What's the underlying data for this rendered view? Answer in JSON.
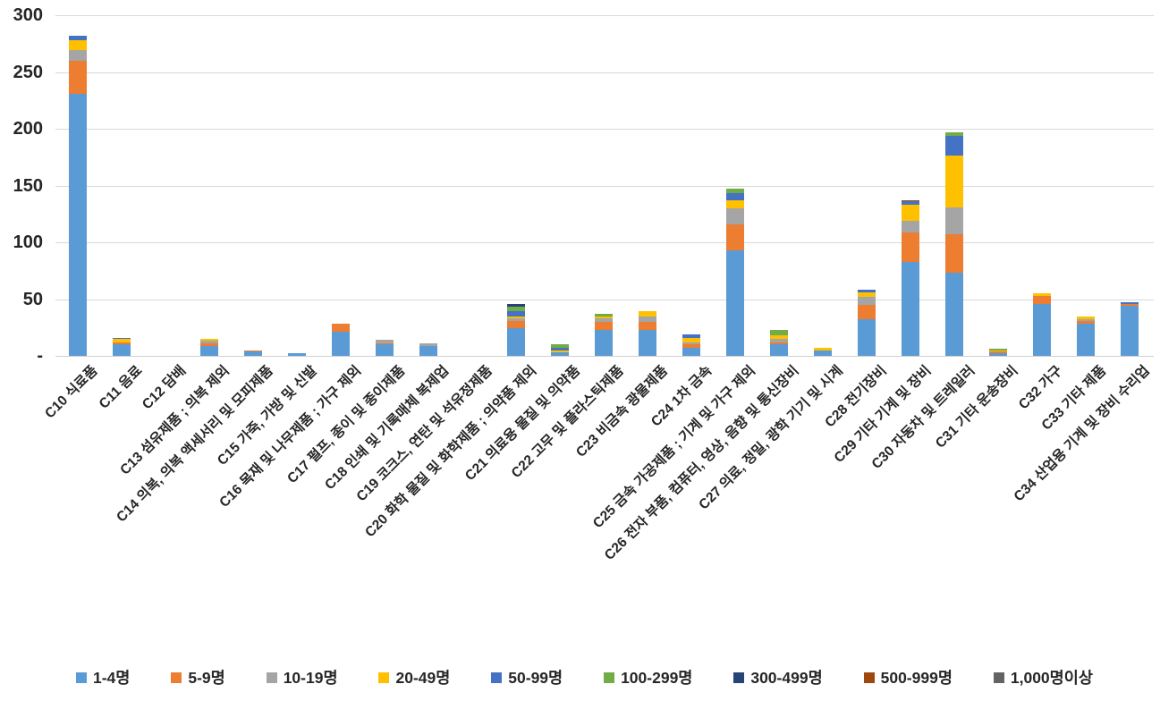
{
  "chart_data": {
    "type": "bar",
    "stacked": true,
    "title": "",
    "xlabel": "",
    "ylabel": "",
    "ylim": [
      0,
      300
    ],
    "y_tick_step": 50,
    "y_ticks": [
      {
        "label": "300",
        "value": 300
      },
      {
        "label": "250",
        "value": 250
      },
      {
        "label": "200",
        "value": 200
      },
      {
        "label": "150",
        "value": 150
      },
      {
        "label": "100",
        "value": 100
      },
      {
        "label": "50",
        "value": 50
      },
      {
        "label": "-",
        "value": 0
      }
    ],
    "grid": true,
    "legend_position": "bottom",
    "categories": [
      "C10 식료품",
      "C11 음료",
      "C12 담배",
      "C13 섬유제품 ; 의복 제외",
      "C14 의복, 의복 액세서리 및 모피제품",
      "C15 가죽, 가방 및 신발",
      "C16 목재 및 나무제품 ; 가구 제외",
      "C17 펄프, 종이 및 종이제품",
      "C18 인쇄 및 기록매체 복제업",
      "C19 코크스, 연탄 및 석유정제품",
      "C20 화학 물질 및 화학제품 ; 의약품 제외",
      "C21 의료용 물질 및 의약품",
      "C22 고무 및 플라스틱제품",
      "C23 비금속 광물제품",
      "C24 1차 금속",
      "C25 금속 가공제품 ; 기계 및 가구 제외",
      "C26 전자 부품, 컴퓨터, 영상, 음향 및 통신장비",
      "C27 의료, 정밀, 광학 기기 및 시계",
      "C28 전기장비",
      "C29 기타 기계 및 장비",
      "C30 자동차 및 트레일러",
      "C31 기타 운송장비",
      "C32 가구",
      "C33 기타 제품",
      "C34 산업용 기계 및 장비 수리업"
    ],
    "series": [
      {
        "name": "1-4명",
        "color": "#5B9BD5",
        "values": [
          231,
          10,
          0,
          9,
          4,
          2,
          21,
          10,
          9,
          0,
          24,
          3,
          23,
          23,
          7,
          93,
          10,
          5,
          32,
          83,
          73,
          2,
          46,
          28,
          44
        ]
      },
      {
        "name": "5-9명",
        "color": "#ED7D31",
        "values": [
          29,
          2,
          0,
          2,
          1,
          0,
          7,
          1,
          0,
          0,
          7,
          0,
          7,
          7,
          3,
          23,
          2,
          0,
          13,
          26,
          34,
          2,
          7,
          3,
          2
        ]
      },
      {
        "name": "10-19명",
        "color": "#A5A5A5",
        "values": [
          9,
          0,
          0,
          2,
          0,
          0,
          0,
          3,
          2,
          0,
          2,
          0,
          3,
          5,
          2,
          14,
          3,
          0,
          7,
          10,
          24,
          0,
          0,
          1,
          0
        ]
      },
      {
        "name": "20-49명",
        "color": "#FFC000",
        "values": [
          9,
          3,
          0,
          2,
          0,
          0,
          0,
          0,
          0,
          0,
          2,
          2,
          2,
          4,
          4,
          7,
          3,
          2,
          4,
          14,
          45,
          1,
          2,
          3,
          0
        ]
      },
      {
        "name": "50-99명",
        "color": "#4472C4",
        "values": [
          4,
          1,
          0,
          0,
          0,
          0,
          0,
          0,
          0,
          0,
          4,
          2,
          0,
          0,
          3,
          6,
          0,
          0,
          2,
          3,
          18,
          0,
          0,
          0,
          1
        ]
      },
      {
        "name": "100-299명",
        "color": "#70AD47",
        "values": [
          0,
          0,
          0,
          0,
          0,
          0,
          0,
          0,
          0,
          0,
          4,
          3,
          2,
          0,
          0,
          4,
          5,
          0,
          0,
          0,
          3,
          1,
          0,
          0,
          0
        ]
      },
      {
        "name": "300-499명",
        "color": "#264478",
        "values": [
          0,
          0,
          0,
          0,
          0,
          0,
          0,
          0,
          0,
          0,
          3,
          0,
          0,
          0,
          0,
          0,
          0,
          0,
          0,
          0,
          0,
          0,
          0,
          0,
          0
        ]
      },
      {
        "name": "500-999명",
        "color": "#9E480E",
        "values": [
          0,
          0,
          0,
          0,
          0,
          0,
          0,
          0,
          0,
          0,
          0,
          0,
          0,
          0,
          0,
          0,
          0,
          0,
          0,
          1,
          0,
          0,
          0,
          0,
          0
        ]
      },
      {
        "name": "1,000명이상",
        "color": "#636363",
        "values": [
          0,
          0,
          0,
          0,
          0,
          0,
          0,
          0,
          0,
          0,
          0,
          0,
          0,
          0,
          0,
          0,
          0,
          0,
          0,
          0,
          0,
          0,
          0,
          0,
          0
        ]
      }
    ],
    "colors": {
      "grid": "#D9D9D9",
      "text": "#262626",
      "background": "#FFFFFF"
    }
  }
}
